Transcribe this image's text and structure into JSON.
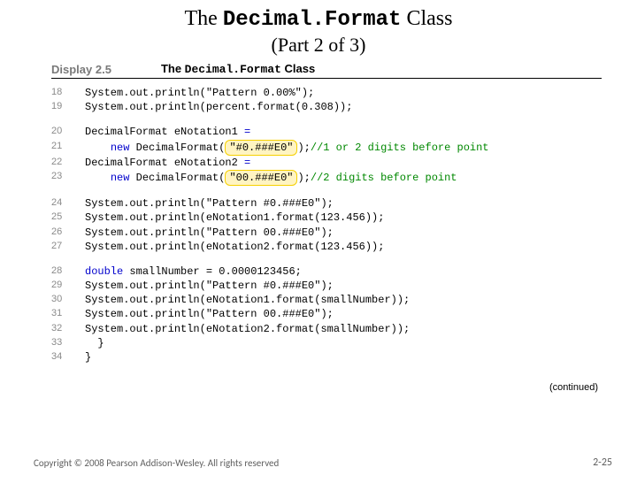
{
  "title": {
    "pre": "The ",
    "mono": "Decimal.Format",
    "post": " Class",
    "subtitle": "(Part 2 of 3)"
  },
  "displayRow": {
    "label": "Display 2.5",
    "pre": "The ",
    "mono": "Decimal.Format",
    "post": " Class"
  },
  "blocks": [
    {
      "lines": [
        {
          "n": "18",
          "segs": [
            {
              "t": "System.out.println("
            },
            {
              "t": "\"Pattern 0.00%\"",
              "cls": "str"
            },
            {
              "t": ");"
            }
          ]
        },
        {
          "n": "19",
          "segs": [
            {
              "t": "System.out.println(percent.format(0.308));"
            }
          ]
        }
      ]
    },
    {
      "lines": [
        {
          "n": "20",
          "segs": [
            {
              "t": "DecimalFormat eNotation1 "
            },
            {
              "t": "=",
              "cls": "kw"
            }
          ]
        },
        {
          "n": "21",
          "segs": [
            {
              "t": "    "
            },
            {
              "t": "new",
              "cls": "kw"
            },
            {
              "t": " DecimalFormat("
            },
            {
              "t": "\"#0.###E0\"",
              "cls": "hl"
            },
            {
              "t": ");"
            },
            {
              "t": "//1 or 2 digits before point",
              "cls": "comment"
            }
          ]
        },
        {
          "n": "22",
          "segs": [
            {
              "t": "DecimalFormat eNotation2 "
            },
            {
              "t": "=",
              "cls": "kw"
            }
          ]
        },
        {
          "n": "23",
          "segs": [
            {
              "t": "    "
            },
            {
              "t": "new",
              "cls": "kw"
            },
            {
              "t": " DecimalFormat("
            },
            {
              "t": "\"00.###E0\"",
              "cls": "hl"
            },
            {
              "t": ");"
            },
            {
              "t": "//2 digits before point",
              "cls": "comment"
            }
          ]
        }
      ]
    },
    {
      "lines": [
        {
          "n": "24",
          "segs": [
            {
              "t": "System.out.println("
            },
            {
              "t": "\"Pattern #0.###E0\"",
              "cls": "str"
            },
            {
              "t": ");"
            }
          ]
        },
        {
          "n": "25",
          "segs": [
            {
              "t": "System.out.println(eNotation1.format(123.456));"
            }
          ]
        },
        {
          "n": "26",
          "segs": [
            {
              "t": "System.out.println("
            },
            {
              "t": "\"Pattern 00.###E0\"",
              "cls": "str"
            },
            {
              "t": ");"
            }
          ]
        },
        {
          "n": "27",
          "segs": [
            {
              "t": "System.out.println(eNotation2.format(123.456));"
            }
          ]
        }
      ]
    },
    {
      "lines": [
        {
          "n": "28",
          "segs": [
            {
              "t": "double",
              "cls": "kw"
            },
            {
              "t": " smallNumber = 0.0000123456;"
            }
          ]
        },
        {
          "n": "29",
          "segs": [
            {
              "t": "System.out.println("
            },
            {
              "t": "\"Pattern #0.###E0\"",
              "cls": "str"
            },
            {
              "t": ");"
            }
          ]
        },
        {
          "n": "30",
          "segs": [
            {
              "t": "System.out.println(eNotation1.format(smallNumber));"
            }
          ]
        },
        {
          "n": "31",
          "segs": [
            {
              "t": "System.out.println("
            },
            {
              "t": "\"Pattern 00.###E0\"",
              "cls": "str"
            },
            {
              "t": ");"
            }
          ]
        },
        {
          "n": "32",
          "segs": [
            {
              "t": "System.out.println(eNotation2.format(smallNumber));"
            }
          ]
        },
        {
          "n": "33",
          "segs": [
            {
              "t": "  }"
            }
          ]
        },
        {
          "n": "34",
          "segs": [
            {
              "t": "}"
            }
          ]
        }
      ]
    }
  ],
  "continued": "(continued)",
  "copyright": "Copyright © 2008 Pearson Addison-Wesley. All rights reserved",
  "pagenum": "2-25"
}
